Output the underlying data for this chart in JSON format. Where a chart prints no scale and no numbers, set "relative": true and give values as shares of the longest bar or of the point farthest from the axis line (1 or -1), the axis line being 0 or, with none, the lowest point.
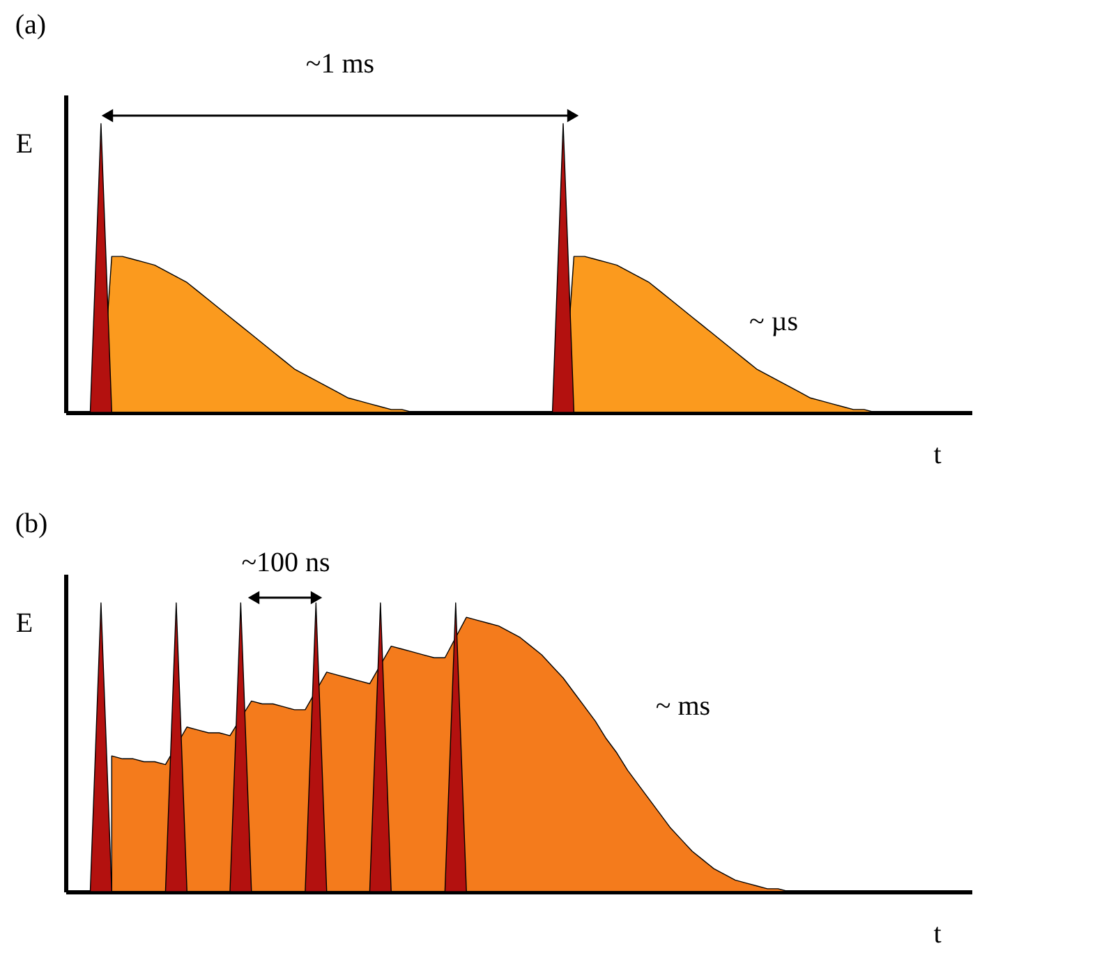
{
  "chart_data": [
    {
      "type": "area",
      "title": "(a)",
      "xlabel": "t",
      "ylabel": "E",
      "relative": true,
      "categories": [
        null,
        null,
        null,
        null,
        null,
        null,
        null,
        null,
        null,
        null,
        null,
        null,
        null,
        null,
        null,
        null,
        null,
        null,
        null,
        null,
        null,
        null,
        null,
        null,
        null,
        null,
        null,
        null,
        null,
        null,
        null,
        null,
        null,
        null,
        null,
        null,
        null,
        null,
        null,
        null,
        null,
        null,
        null,
        null,
        null,
        null,
        null,
        null,
        null,
        null,
        null,
        null,
        null,
        null,
        null,
        null,
        null,
        null,
        null,
        null,
        null,
        null,
        null,
        null,
        null,
        null,
        null,
        null,
        null,
        null,
        null,
        null,
        null,
        null,
        null,
        null,
        null,
        null,
        null,
        null,
        null,
        null,
        null,
        null,
        null
      ],
      "series": [
        {
          "color": "#fb9a1e",
          "values": [
            0,
            0,
            0,
            0,
            0.54,
            0.54,
            0.53,
            0.52,
            0.51,
            0.49,
            0.47,
            0.45,
            0.42,
            0.39,
            0.36,
            0.33,
            0.3,
            0.27,
            0.24,
            0.21,
            0.18,
            0.15,
            0.13,
            0.11,
            0.09,
            0.07,
            0.05,
            0.04,
            0.03,
            0.02,
            0.01,
            0.01,
            0,
            0,
            0,
            0,
            0,
            0,
            0,
            0,
            0,
            0,
            0,
            0,
            0,
            0,
            0,
            0.54,
            0.54,
            0.53,
            0.52,
            0.51,
            0.49,
            0.47,
            0.45,
            0.42,
            0.39,
            0.36,
            0.33,
            0.3,
            0.27,
            0.24,
            0.21,
            0.18,
            0.15,
            0.13,
            0.11,
            0.09,
            0.07,
            0.05,
            0.04,
            0.03,
            0.02,
            0.01,
            0.01,
            0,
            0,
            0,
            0,
            0,
            0,
            0,
            0,
            0,
            0
          ]
        },
        {
          "color": "#b3110f",
          "values": [
            0,
            0,
            0,
            1,
            0,
            0,
            0,
            0,
            0,
            0,
            0,
            0,
            0,
            0,
            0,
            0,
            0,
            0,
            0,
            0,
            0,
            0,
            0,
            0,
            0,
            0,
            0,
            0,
            0,
            0,
            0,
            0,
            0,
            0,
            0,
            0,
            0,
            0,
            0,
            0,
            0,
            0,
            0,
            0,
            0,
            0,
            1,
            0,
            0,
            0,
            0,
            0,
            0,
            0,
            0,
            0,
            0,
            0,
            0,
            0,
            0,
            0,
            0,
            0,
            0,
            0,
            0,
            0,
            0,
            0,
            0,
            0,
            0,
            0,
            0,
            0,
            0,
            0,
            0,
            0,
            0,
            0,
            0,
            0,
            0
          ]
        }
      ],
      "annotations": [
        "~1 ms",
        "~ µs"
      ]
    },
    {
      "type": "area",
      "title": "(b)",
      "xlabel": "t",
      "ylabel": "E",
      "relative": true,
      "categories": [
        null,
        null,
        null,
        null,
        null,
        null,
        null,
        null,
        null,
        null,
        null,
        null,
        null,
        null,
        null,
        null,
        null,
        null,
        null,
        null,
        null,
        null,
        null,
        null,
        null,
        null,
        null,
        null,
        null,
        null,
        null,
        null,
        null,
        null,
        null,
        null,
        null,
        null,
        null,
        null,
        null,
        null,
        null,
        null,
        null,
        null,
        null,
        null,
        null,
        null,
        null,
        null,
        null,
        null,
        null,
        null,
        null,
        null,
        null,
        null,
        null,
        null,
        null,
        null,
        null,
        null,
        null,
        null,
        null,
        null,
        null,
        null,
        null,
        null,
        null,
        null,
        null,
        null,
        null,
        null,
        null,
        null,
        null,
        null,
        null
      ],
      "series": [
        {
          "color": "#f47b1c",
          "values": [
            null,
            null,
            null,
            null,
            0.47,
            0.46,
            0.46,
            0.45,
            0.45,
            0.44,
            null,
            0.57,
            0.56,
            0.55,
            0.55,
            0.54,
            null,
            0.66,
            0.65,
            0.65,
            0.64,
            0.63,
            0.63,
            null,
            0.76,
            0.75,
            0.74,
            0.73,
            0.72,
            null,
            0.85,
            0.84,
            0.83,
            0.82,
            0.81,
            0.81,
            null,
            0.95,
            0.94,
            0.93,
            0.92,
            0.9,
            0.88,
            0.85,
            0.82,
            0.78,
            0.74,
            0.69,
            0.64,
            0.59,
            0.53,
            0.48,
            0.42,
            0.37,
            0.32,
            0.27,
            0.22,
            0.18,
            0.14,
            0.11,
            0.08,
            0.06,
            0.04,
            0.03,
            0.02,
            0.01,
            0.01,
            0,
            0,
            0,
            0,
            0,
            0,
            0,
            0,
            0,
            0,
            0,
            0,
            0,
            0,
            0,
            0,
            0,
            0
          ]
        },
        {
          "color": "#b3110f",
          "values": [
            0,
            0,
            0,
            1,
            0,
            0,
            0,
            0,
            0,
            0,
            1,
            0,
            0,
            0,
            0,
            0,
            1,
            0,
            0,
            0,
            0,
            0,
            0,
            1,
            0,
            0,
            0,
            0,
            0,
            1,
            0,
            0,
            0,
            0,
            0,
            0,
            1,
            0,
            0,
            0,
            0,
            0,
            0,
            0,
            0,
            0,
            0,
            0,
            0,
            0,
            0,
            0,
            0,
            0,
            0,
            0,
            0,
            0,
            0,
            0,
            0,
            0,
            0,
            0,
            0,
            0,
            0,
            0,
            0,
            0,
            0,
            0,
            0,
            0,
            0,
            0,
            0,
            0,
            0,
            0,
            0,
            0,
            0,
            0,
            0
          ]
        }
      ],
      "annotations": [
        "~100 ns",
        "~ ms"
      ]
    }
  ]
}
